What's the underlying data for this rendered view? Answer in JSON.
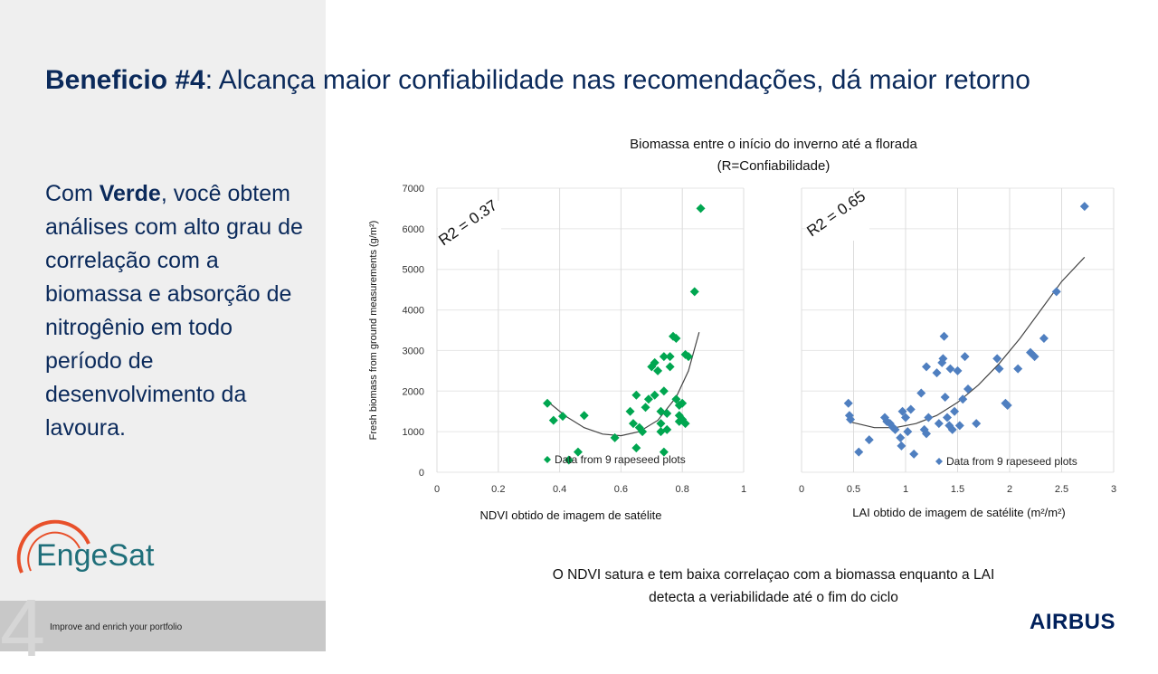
{
  "slide": {
    "title_bold": "Beneficio #4",
    "title_rest": ": Alcança maior confiabilidade nas recomendações, dá maior retorno",
    "side_pre": "Com ",
    "side_bold": "Verde",
    "side_post": ", você obtem análises com alto grau de correlação com a biomassa e absorção de nitrogênio em todo período de desenvolvimento da lavoura.",
    "chart_title_line1": "Biomassa entre o início do inverno até a florada",
    "chart_title_line2": "(R=Confiabilidade)",
    "caption_line1": "O NDVI satura e tem baixa correlaçao com a biomassa enquanto a LAI",
    "caption_line2": "detecta a veriabilidade até o fim do ciclo",
    "footer_text": "Improve and enrich your portfolio",
    "logo_text": "EngeSat",
    "brand_text": "AIRBUS"
  },
  "colors": {
    "navy": "#0b2a5b",
    "green_marker": "#00a650",
    "blue_marker": "#4f7fc0",
    "logo_orange": "#e8502a",
    "logo_teal": "#1f6f7a"
  },
  "chart_data": [
    {
      "type": "scatter",
      "title": "",
      "xlabel": "NDVI obtido de imagem de satélite",
      "ylabel": "Fresh biomass from ground measurements (g/m²)",
      "xlim": [
        0,
        1
      ],
      "ylim": [
        0,
        7000
      ],
      "xticks": [
        "0",
        "0.2",
        "0.4",
        "0.6",
        "0.8",
        "1"
      ],
      "yticks": [
        "0",
        "1000",
        "2000",
        "3000",
        "4000",
        "5000",
        "6000",
        "7000"
      ],
      "grid": true,
      "annotation": "R2 = 0.37",
      "legend": "Data from 9 rapeseed plots",
      "marker": "green-diamond",
      "trend": [
        [
          0.36,
          1750
        ],
        [
          0.42,
          1380
        ],
        [
          0.48,
          1100
        ],
        [
          0.54,
          940
        ],
        [
          0.6,
          900
        ],
        [
          0.66,
          1000
        ],
        [
          0.72,
          1280
        ],
        [
          0.78,
          1850
        ],
        [
          0.82,
          2500
        ],
        [
          0.855,
          3450
        ]
      ],
      "points": [
        [
          0.36,
          1700
        ],
        [
          0.38,
          1280
        ],
        [
          0.41,
          1380
        ],
        [
          0.43,
          300
        ],
        [
          0.46,
          500
        ],
        [
          0.48,
          1400
        ],
        [
          0.58,
          850
        ],
        [
          0.63,
          1500
        ],
        [
          0.64,
          1200
        ],
        [
          0.65,
          1900
        ],
        [
          0.65,
          600
        ],
        [
          0.66,
          1100
        ],
        [
          0.67,
          1000
        ],
        [
          0.68,
          1600
        ],
        [
          0.69,
          1800
        ],
        [
          0.7,
          2600
        ],
        [
          0.71,
          2700
        ],
        [
          0.71,
          1900
        ],
        [
          0.72,
          2500
        ],
        [
          0.73,
          1500
        ],
        [
          0.73,
          1200
        ],
        [
          0.73,
          1000
        ],
        [
          0.74,
          2850
        ],
        [
          0.74,
          2000
        ],
        [
          0.74,
          500
        ],
        [
          0.75,
          1450
        ],
        [
          0.75,
          1050
        ],
        [
          0.76,
          2600
        ],
        [
          0.76,
          2850
        ],
        [
          0.77,
          3350
        ],
        [
          0.78,
          3300
        ],
        [
          0.78,
          1800
        ],
        [
          0.79,
          1650
        ],
        [
          0.79,
          1250
        ],
        [
          0.8,
          1300
        ],
        [
          0.81,
          1200
        ],
        [
          0.81,
          2900
        ],
        [
          0.82,
          2850
        ],
        [
          0.84,
          4450
        ],
        [
          0.86,
          6500
        ],
        [
          0.79,
          1400
        ],
        [
          0.8,
          1700
        ]
      ]
    },
    {
      "type": "scatter",
      "title": "",
      "xlabel": "LAI obtido de imagem de satélite (m²/m²)",
      "ylabel": "",
      "xlim": [
        0,
        3
      ],
      "ylim": [
        0,
        7000
      ],
      "xticks": [
        "0",
        "0.5",
        "1",
        "1.5",
        "2",
        "2.5",
        "3"
      ],
      "grid": true,
      "annotation": "R2 = 0.65",
      "legend": "Data from 9 rapeseed plots",
      "marker": "blue-diamond",
      "trend": [
        [
          0.45,
          1250
        ],
        [
          0.7,
          1100
        ],
        [
          0.9,
          1100
        ],
        [
          1.1,
          1200
        ],
        [
          1.3,
          1400
        ],
        [
          1.5,
          1720
        ],
        [
          1.7,
          2150
        ],
        [
          1.9,
          2680
        ],
        [
          2.1,
          3300
        ],
        [
          2.3,
          4000
        ],
        [
          2.5,
          4700
        ],
        [
          2.72,
          5300
        ]
      ],
      "points": [
        [
          0.45,
          1700
        ],
        [
          0.46,
          1400
        ],
        [
          0.47,
          1300
        ],
        [
          0.55,
          500
        ],
        [
          0.65,
          800
        ],
        [
          0.8,
          1350
        ],
        [
          0.82,
          1250
        ],
        [
          0.85,
          1200
        ],
        [
          0.88,
          1100
        ],
        [
          0.9,
          1050
        ],
        [
          0.95,
          850
        ],
        [
          0.96,
          650
        ],
        [
          0.97,
          1500
        ],
        [
          1.0,
          1350
        ],
        [
          1.02,
          1000
        ],
        [
          1.05,
          1550
        ],
        [
          1.08,
          450
        ],
        [
          1.15,
          1950
        ],
        [
          1.18,
          1050
        ],
        [
          1.2,
          950
        ],
        [
          1.22,
          1350
        ],
        [
          1.2,
          2600
        ],
        [
          1.3,
          2450
        ],
        [
          1.32,
          1200
        ],
        [
          1.35,
          2700
        ],
        [
          1.36,
          2800
        ],
        [
          1.37,
          3350
        ],
        [
          1.38,
          1850
        ],
        [
          1.4,
          1350
        ],
        [
          1.42,
          1150
        ],
        [
          1.43,
          2550
        ],
        [
          1.45,
          1050
        ],
        [
          1.47,
          1500
        ],
        [
          1.5,
          2500
        ],
        [
          1.52,
          1150
        ],
        [
          1.55,
          1800
        ],
        [
          1.57,
          2850
        ],
        [
          1.6,
          2050
        ],
        [
          1.68,
          1200
        ],
        [
          1.88,
          2800
        ],
        [
          1.9,
          2550
        ],
        [
          1.96,
          1700
        ],
        [
          1.98,
          1650
        ],
        [
          2.08,
          2550
        ],
        [
          2.2,
          2950
        ],
        [
          2.24,
          2850
        ],
        [
          2.33,
          3300
        ],
        [
          2.45,
          4450
        ],
        [
          2.72,
          6550
        ]
      ]
    }
  ]
}
